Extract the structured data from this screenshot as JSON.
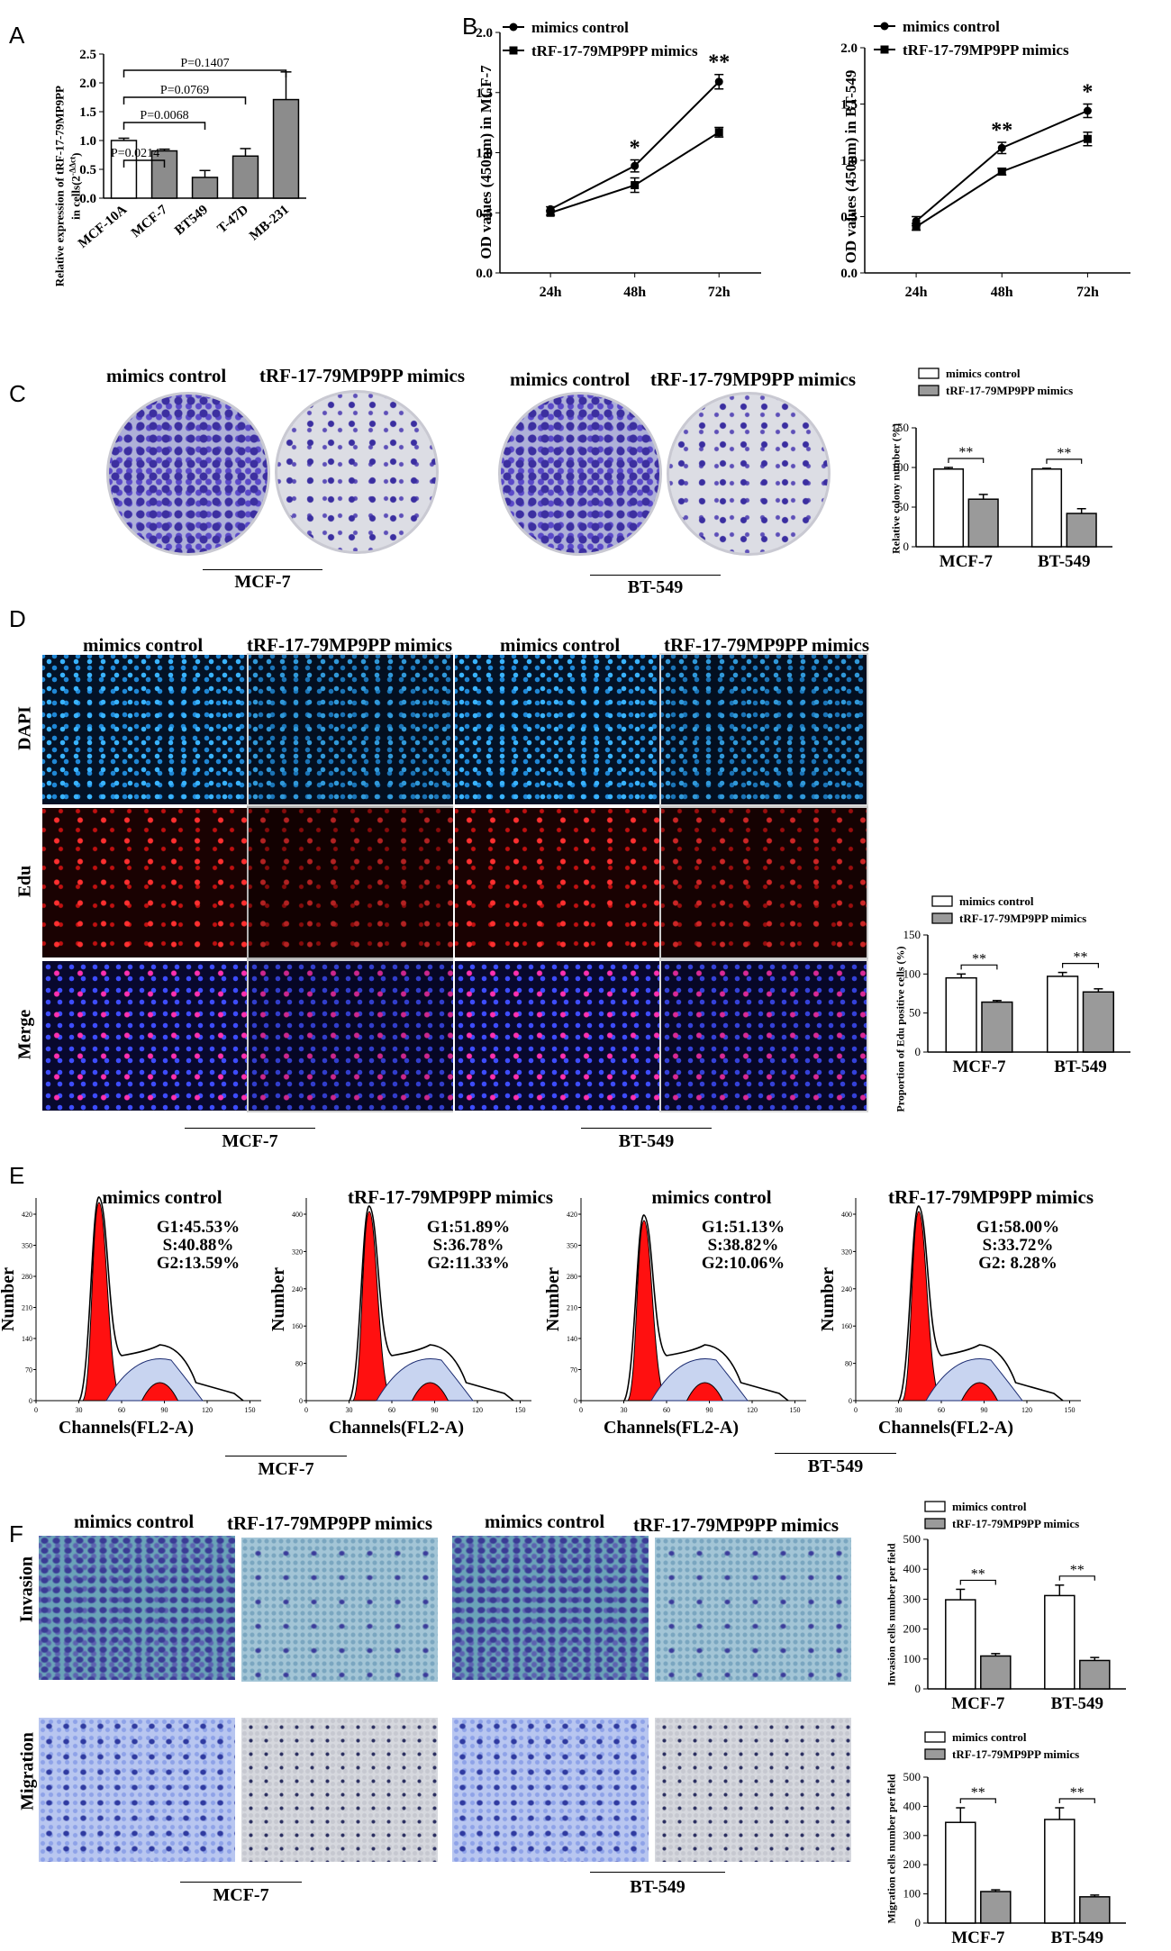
{
  "panel_letters": [
    "A",
    "B",
    "C",
    "D",
    "E",
    "F"
  ],
  "labels": {
    "mimics_control": "mimics control",
    "trf_mimics": "tRF-17-79MP9PP mimics",
    "mcf7": "MCF-7",
    "bt549": "BT-549",
    "dapi": "DAPI",
    "edu": "Edu",
    "merge": "Merge",
    "invasion": "Invasion",
    "migration": "Migration",
    "channels": "Channels(FL2-A)",
    "number": "Number",
    "star1": "*",
    "star2": "**"
  },
  "panelA": {
    "ylabel_line1": "Relative  expression of tRF-17-79MP9PP",
    "ylabel_line2": "in cells(2",
    "ylabel_sup": "-ΔΔct",
    "ylabel_end": ")",
    "pvalues": [
      "P=0.0214",
      "P=0.0068",
      "P=0.0769",
      "P=0.1407"
    ]
  },
  "panelB": {
    "mcf7_ylabel": "OD values (450nm) in MCF-7",
    "bt549_ylabel": "OD values (450nm) in BT-549"
  },
  "panelC": {
    "ylabel": "Relative colony number (%)"
  },
  "panelD": {
    "ylabel": "Proportion of Edu positive cells (%)"
  },
  "panelE": {
    "stats": [
      [
        "G1:45.53%",
        "S:40.88%",
        "G2:13.59%"
      ],
      [
        "G1:51.89%",
        "S:36.78%",
        "G2:11.33%"
      ],
      [
        "G1:51.13%",
        "S:38.82%",
        "G2:10.06%"
      ],
      [
        "G1:58.00%",
        "S:33.72%",
        "G2:  8.28%"
      ]
    ]
  },
  "panelF": {
    "inv_ylabel": "Invasion cells number per field",
    "mig_ylabel": "Migration cells number per field"
  },
  "chart_data": [
    {
      "id": "A",
      "type": "bar",
      "categories": [
        "MCF-10A",
        "MCF-7",
        "BT549",
        "T-47D",
        "MB-231"
      ],
      "values": [
        1.0,
        0.82,
        0.36,
        0.73,
        1.71
      ],
      "errors": [
        0.04,
        0.03,
        0.12,
        0.13,
        0.48
      ],
      "ylim": [
        0,
        2.5
      ],
      "yticks": [
        "0.0",
        "0.5",
        "1.0",
        "1.5",
        "2.0",
        "2.5"
      ],
      "colors": [
        "#ffffff",
        "#8c8c8c",
        "#8c8c8c",
        "#8c8c8c",
        "#8c8c8c"
      ]
    },
    {
      "id": "B1",
      "type": "line",
      "x": [
        "24h",
        "48h",
        "72h"
      ],
      "series": [
        {
          "name": "mimics control",
          "values": [
            0.53,
            0.89,
            1.59
          ],
          "errors": [
            0.02,
            0.05,
            0.06
          ]
        },
        {
          "name": "tRF-17-79MP9PP mimics",
          "values": [
            0.5,
            0.73,
            1.17
          ],
          "errors": [
            0.02,
            0.06,
            0.04
          ]
        }
      ],
      "ylim": [
        0,
        2.0
      ],
      "yticks": [
        "0.0",
        "0.5",
        "1.0",
        "1.5",
        "2.0"
      ],
      "sig": [
        "",
        "*",
        "**"
      ]
    },
    {
      "id": "B2",
      "type": "line",
      "x": [
        "24h",
        "48h",
        "72h"
      ],
      "series": [
        {
          "name": "mimics control",
          "values": [
            0.46,
            1.11,
            1.44
          ],
          "errors": [
            0.04,
            0.05,
            0.06
          ]
        },
        {
          "name": "tRF-17-79MP9PP mimics",
          "values": [
            0.41,
            0.9,
            1.19
          ],
          "errors": [
            0.03,
            0.03,
            0.06
          ]
        }
      ],
      "ylim": [
        0,
        2.0
      ],
      "yticks": [
        "0.0",
        "0.5",
        "1.0",
        "1.5",
        "2.0"
      ],
      "sig": [
        "",
        "**",
        "*"
      ]
    },
    {
      "id": "C",
      "type": "bar",
      "categories": [
        "MCF-7",
        "BT-549"
      ],
      "series": [
        {
          "name": "mimics control",
          "values": [
            98,
            98
          ],
          "errors": [
            2,
            1
          ]
        },
        {
          "name": "tRF-17-79MP9PP mimics",
          "values": [
            60,
            42
          ],
          "errors": [
            6,
            6
          ]
        }
      ],
      "ylim": [
        0,
        150
      ],
      "yticks": [
        "0",
        "50",
        "100",
        "150"
      ]
    },
    {
      "id": "D",
      "type": "bar",
      "categories": [
        "MCF-7",
        "BT-549"
      ],
      "series": [
        {
          "name": "mimics control",
          "values": [
            95,
            97
          ],
          "errors": [
            5,
            5
          ]
        },
        {
          "name": "tRF-17-79MP9PP mimics",
          "values": [
            64,
            77
          ],
          "errors": [
            2,
            4
          ]
        }
      ],
      "ylim": [
        0,
        150
      ],
      "yticks": [
        "0",
        "50",
        "100",
        "150"
      ]
    },
    {
      "id": "F1",
      "type": "bar",
      "categories": [
        "MCF-7",
        "BT-549"
      ],
      "series": [
        {
          "name": "mimics control",
          "values": [
            298,
            312
          ],
          "errors": [
            35,
            35
          ]
        },
        {
          "name": "tRF-17-79MP9PP mimics",
          "values": [
            110,
            95
          ],
          "errors": [
            8,
            10
          ]
        }
      ],
      "ylim": [
        0,
        500
      ],
      "yticks": [
        "0",
        "100",
        "200",
        "300",
        "400",
        "500"
      ]
    },
    {
      "id": "F2",
      "type": "bar",
      "categories": [
        "MCF-7",
        "BT-549"
      ],
      "series": [
        {
          "name": "mimics control",
          "values": [
            345,
            355
          ],
          "errors": [
            50,
            40
          ]
        },
        {
          "name": "tRF-17-79MP9PP mimics",
          "values": [
            108,
            90
          ],
          "errors": [
            6,
            6
          ]
        }
      ],
      "ylim": [
        0,
        500
      ],
      "yticks": [
        "0",
        "100",
        "200",
        "300",
        "400",
        "500"
      ]
    },
    {
      "id": "E",
      "type": "area",
      "xticks": [
        "0",
        "30",
        "60",
        "90",
        "120",
        "150"
      ],
      "yticks_set": [
        [
          "0",
          "70",
          "140",
          "210",
          "280",
          "350",
          "420"
        ],
        [
          "0",
          "80",
          "160",
          "240",
          "320",
          "400"
        ],
        [
          "0",
          "70",
          "140",
          "210",
          "280",
          "350",
          "420"
        ],
        [
          "0",
          "80",
          "160",
          "240",
          "320",
          "400"
        ]
      ]
    }
  ]
}
